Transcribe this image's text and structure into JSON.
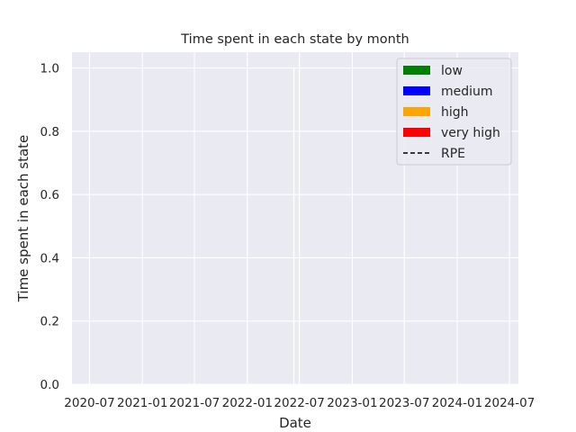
{
  "chart_data": {
    "type": "area",
    "title": "Time spent in each state by month",
    "xlabel": "Date",
    "ylabel": "Time spent in each state",
    "xlim": [
      "2020-05-01",
      "2024-08-01"
    ],
    "ylim": [
      0,
      1.05
    ],
    "x_ticks": [
      {
        "date": "2020-07-01",
        "label": "2020-07"
      },
      {
        "date": "2021-01-01",
        "label": "2021-01"
      },
      {
        "date": "2021-07-01",
        "label": "2021-07"
      },
      {
        "date": "2022-01-01",
        "label": "2022-01"
      },
      {
        "date": "2022-07-01",
        "label": "2022-07"
      },
      {
        "date": "2023-01-01",
        "label": "2023-01"
      },
      {
        "date": "2023-07-01",
        "label": "2023-07"
      },
      {
        "date": "2024-01-01",
        "label": "2024-01"
      },
      {
        "date": "2024-07-01",
        "label": "2024-07"
      }
    ],
    "y_ticks": [
      {
        "value": 0.0,
        "label": "0.0"
      },
      {
        "value": 0.2,
        "label": "0.2"
      },
      {
        "value": 0.4,
        "label": "0.4"
      },
      {
        "value": 0.6,
        "label": "0.6"
      },
      {
        "value": 0.8,
        "label": "0.8"
      },
      {
        "value": 1.0,
        "label": "1.0"
      }
    ],
    "grid": true,
    "legend_position": "top-right",
    "series": [
      {
        "name": "low",
        "color": "#008000",
        "kind": "area",
        "points": []
      },
      {
        "name": "medium",
        "color": "#0000ff",
        "kind": "area",
        "points": []
      },
      {
        "name": "high",
        "color": "#ffa500",
        "kind": "area",
        "points": []
      },
      {
        "name": "very high",
        "color": "#ff0000",
        "kind": "area",
        "points": []
      },
      {
        "name": "RPE",
        "color": "#000000",
        "kind": "dashed-line",
        "points": []
      }
    ],
    "marks": [
      {
        "kind": "vertical-segment",
        "x": "2022-06-12",
        "y0": 0,
        "y1": 1.0,
        "color": "#ffffff"
      }
    ]
  }
}
